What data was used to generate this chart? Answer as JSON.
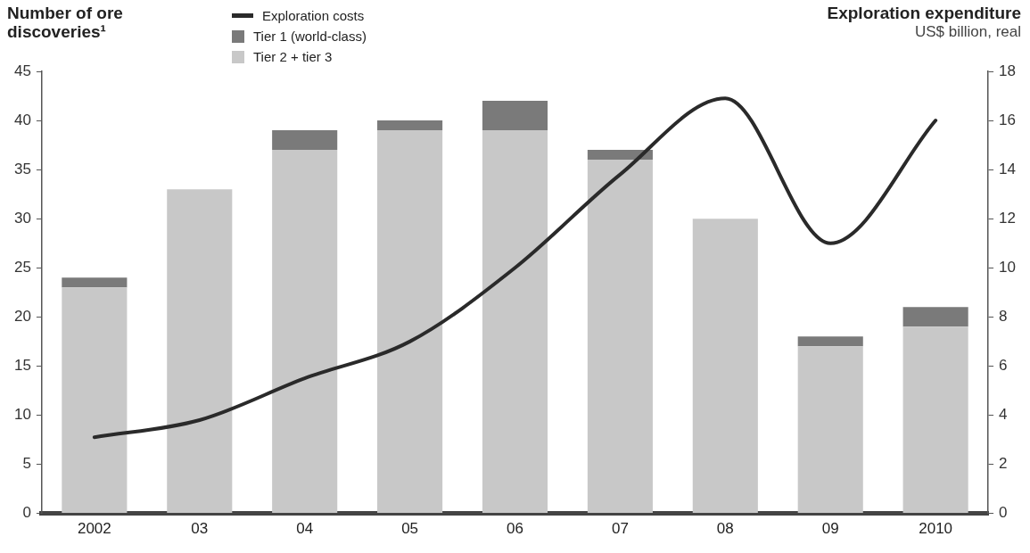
{
  "chart_data": {
    "type": "bar",
    "ylabel": "Number of ore discoveries¹",
    "y2label": "Exploration expenditure",
    "annotations": [
      "US$ billion, real"
    ],
    "categories": [
      "2002",
      "03",
      "04",
      "05",
      "06",
      "07",
      "08",
      "09",
      "2010"
    ],
    "stacked": true,
    "series": [
      {
        "name": "Tier 2 + tier 3",
        "color": "#c8c8c8",
        "values": [
          23,
          33,
          37,
          39,
          39,
          36,
          30,
          17,
          19
        ]
      },
      {
        "name": "Tier 1 (world-class)",
        "color": "#7a7a7a",
        "values": [
          1,
          0,
          2,
          1,
          3,
          1,
          0,
          1,
          2
        ]
      },
      {
        "name": "Exploration costs",
        "type": "line",
        "axis": "y2",
        "color": "#2a2a2a",
        "values": [
          3.1,
          3.8,
          5.5,
          7,
          10,
          13.8,
          16.9,
          11,
          16
        ]
      }
    ],
    "ylim": [
      0,
      45
    ],
    "yticks": [
      0,
      5,
      10,
      15,
      20,
      25,
      30,
      35,
      40,
      45
    ],
    "y2lim": [
      0,
      18
    ],
    "y2ticks": [
      0,
      2,
      4,
      6,
      8,
      10,
      12,
      14,
      16,
      18
    ],
    "grid": false,
    "legend": "top left",
    "marker": "none",
    "line_style": "solid"
  }
}
